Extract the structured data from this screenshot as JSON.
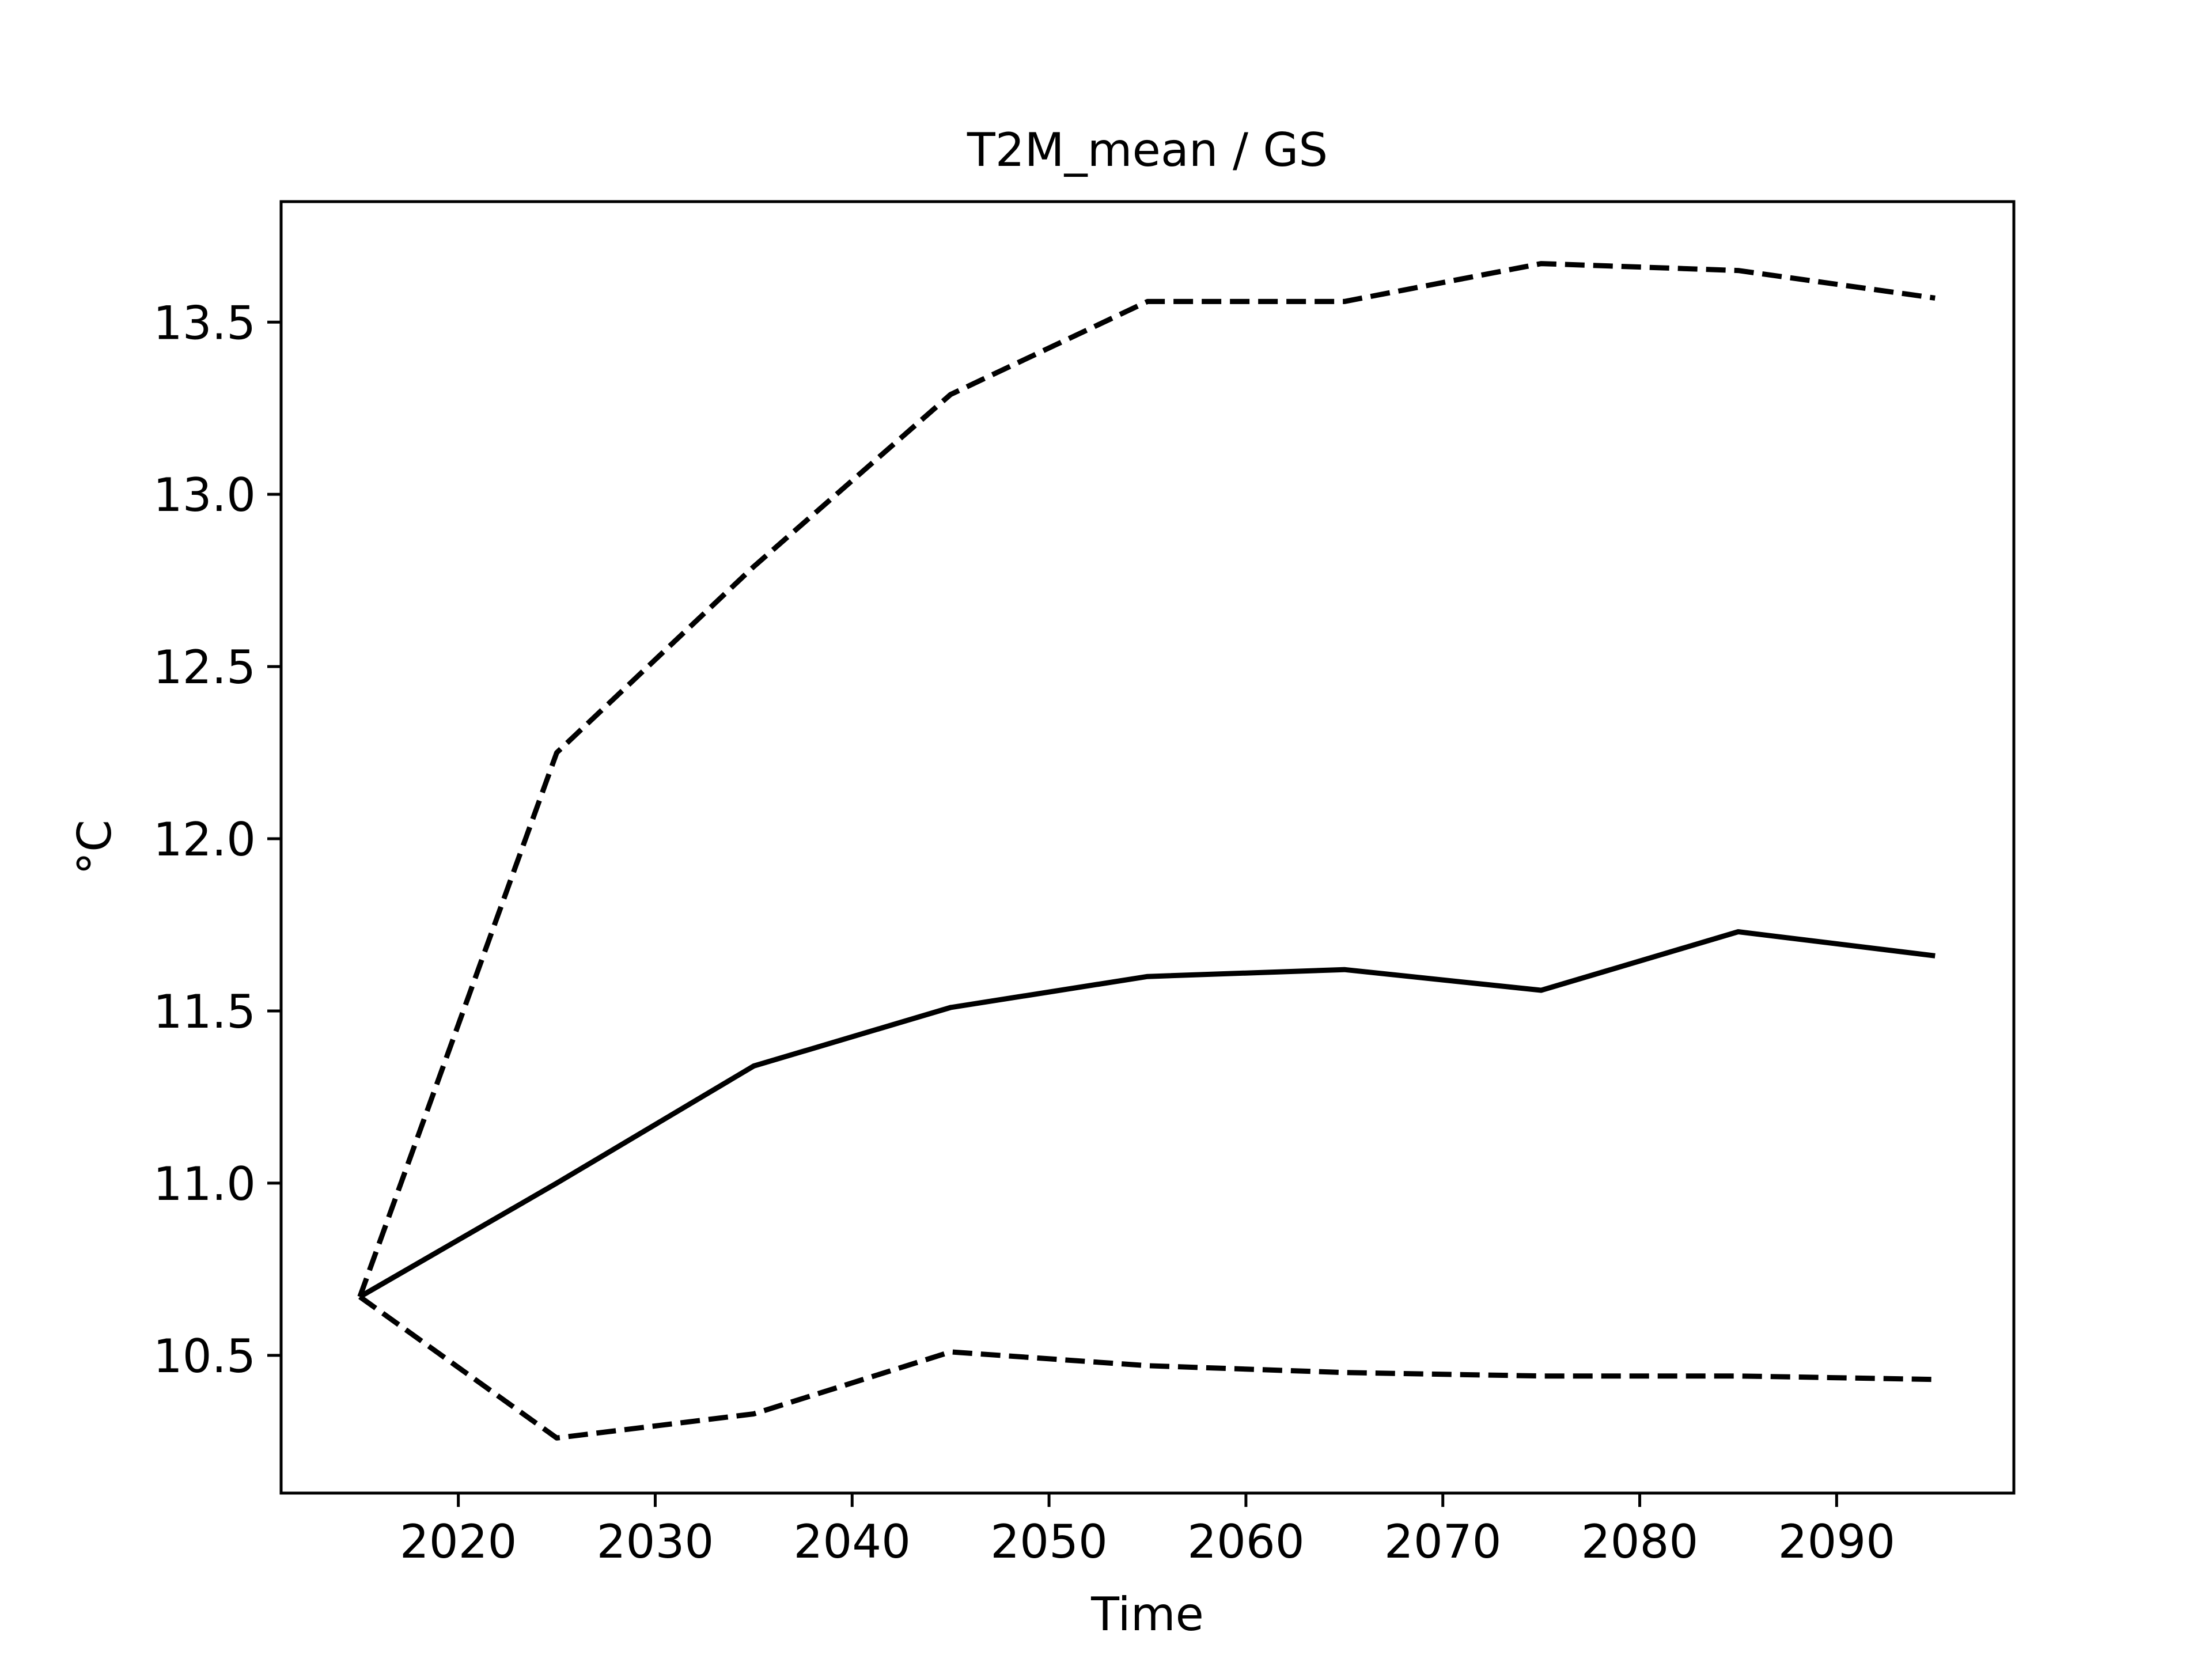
{
  "chart_data": {
    "type": "line",
    "title": "T2M_mean / GS",
    "xlabel": "Time",
    "ylabel": "°C",
    "xlim": [
      2011,
      2099
    ],
    "ylim": [
      10.1,
      13.85
    ],
    "xticks": [
      2020,
      2030,
      2040,
      2050,
      2060,
      2070,
      2080,
      2090
    ],
    "xtick_labels": [
      "2020",
      "2030",
      "2040",
      "2050",
      "2060",
      "2070",
      "2080",
      "2090"
    ],
    "yticks": [
      10.5,
      11.0,
      11.5,
      12.0,
      12.5,
      13.0,
      13.5
    ],
    "ytick_labels": [
      "10.5",
      "11.0",
      "11.5",
      "12.0",
      "12.5",
      "13.0",
      "13.5"
    ],
    "grid": false,
    "legend": "none",
    "x": [
      2015,
      2025,
      2035,
      2045,
      2055,
      2065,
      2075,
      2085,
      2095
    ],
    "series": [
      {
        "role": "mean",
        "style": "solid",
        "color": "#000000",
        "values": [
          10.67,
          11.0,
          11.34,
          11.51,
          11.6,
          11.62,
          11.56,
          11.73,
          11.66
        ]
      },
      {
        "role": "upper",
        "style": "dashed",
        "color": "#000000",
        "values": [
          10.67,
          12.25,
          12.79,
          13.29,
          13.56,
          13.56,
          13.67,
          13.65,
          13.57
        ]
      },
      {
        "role": "lower",
        "style": "dashed",
        "color": "#000000",
        "values": [
          10.67,
          10.26,
          10.33,
          10.51,
          10.47,
          10.45,
          10.44,
          10.44,
          10.43
        ]
      }
    ]
  }
}
